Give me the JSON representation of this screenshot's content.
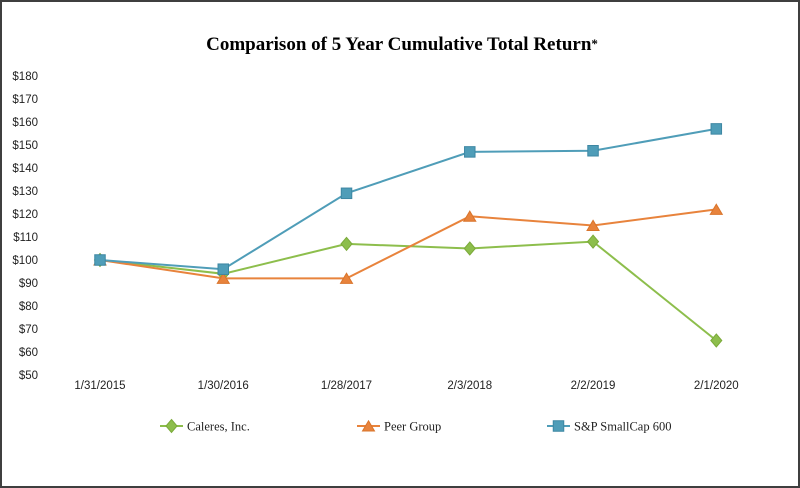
{
  "frame": {
    "background_color": "#ffffff",
    "border_color": "#3f3f3f"
  },
  "title": {
    "main": "Comparison of 5 Year Cumulative Total Return",
    "asterisk": "*"
  },
  "chart_data": {
    "type": "line",
    "title": "Comparison of 5 Year Cumulative Total Return*",
    "xlabel": "",
    "ylabel": "",
    "x_categories": [
      "1/31/2015",
      "1/30/2016",
      "1/28/2017",
      "2/3/2018",
      "2/2/2019",
      "2/1/2020"
    ],
    "y_tick_labels": [
      "$180",
      "$170",
      "$160",
      "$150",
      "$140",
      "$130",
      "$120",
      "$110",
      "$100",
      "$90",
      "$80",
      "$70",
      "$60",
      "$50"
    ],
    "ylim": [
      50,
      180
    ],
    "y_step": 10,
    "grid": false,
    "axis_lines": false,
    "legend_position": "bottom",
    "series": [
      {
        "name": "Caleres, Inc.",
        "color": "#8DBE4C",
        "marker": "diamond",
        "marker_edge_color": "#7BAA3A",
        "values": [
          100,
          94,
          107,
          105,
          108,
          65
        ]
      },
      {
        "name": "Peer Group",
        "color": "#E8833C",
        "marker": "triangle",
        "marker_edge_color": "#D9742B",
        "values": [
          100,
          92,
          92,
          119,
          115,
          122
        ]
      },
      {
        "name": "S&P SmallCap 600",
        "color": "#4F9DB8",
        "marker": "square",
        "marker_edge_color": "#3D87A3",
        "values": [
          100,
          96,
          129,
          147,
          147.5,
          157
        ]
      }
    ]
  }
}
